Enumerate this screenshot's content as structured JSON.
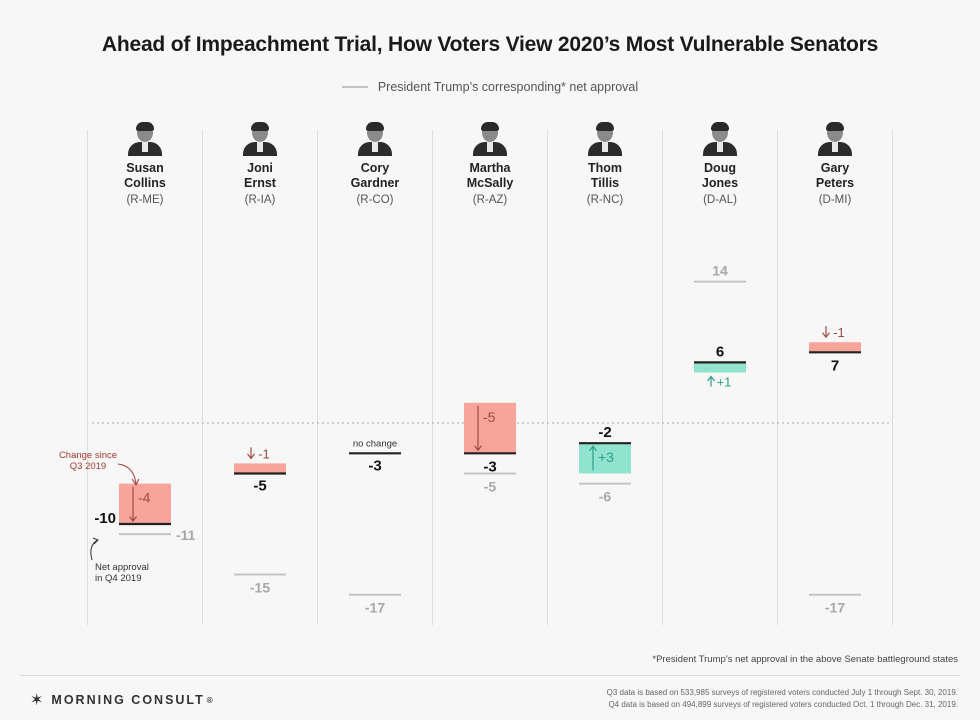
{
  "title": "Ahead of Impeachment Trial, How Voters View 2020’s Most Vulnerable Senators",
  "legend": {
    "label": "President Trump’s corresponding* net approval",
    "color": "#c4c4c4"
  },
  "annotations": {
    "change_label_line1": "Change since",
    "change_label_line2": "Q3 2019",
    "net_label_line1": "Net approval",
    "net_label_line2": "in Q4 2019",
    "no_change": "no change"
  },
  "footnote": "*President Trump’s net approval in the above Senate battleground states",
  "brand": {
    "mark": "✶",
    "name": "MORNING CONSULT",
    "suffix": "®"
  },
  "source": {
    "line1": "Q3 data is based on 533,985 surveys of registered voters conducted July 1 through Sept. 30, 2019.",
    "line2": "Q4 data is based on 494,899 surveys of registered voters conducted Oct. 1 through Dec. 31, 2019."
  },
  "colors": {
    "decrease": "#f7a59b",
    "increase": "#8fe3cf",
    "decrease_text": "#9e4a44",
    "increase_text": "#2f9e86",
    "annotation_red": "#a33b33",
    "trump_line": "#c4c4c4",
    "trump_text": "#a8a8a8",
    "net_line": "#222222"
  },
  "chart_data": {
    "type": "bar",
    "ylim": [
      -18,
      15
    ],
    "reference_line": 0,
    "categories": [
      "Susan Collins",
      "Joni Ernst",
      "Cory Gardner",
      "Martha McSally",
      "Thom Tillis",
      "Doug Jones",
      "Gary Peters"
    ],
    "senators": [
      {
        "first": "Susan",
        "last": "Collins",
        "party": "(R-ME)",
        "net_q4": -10,
        "net_label": "-10",
        "change": -4,
        "change_label": "-4",
        "trump": -11,
        "trump_label": "-11"
      },
      {
        "first": "Joni",
        "last": "Ernst",
        "party": "(R-IA)",
        "net_q4": -5,
        "net_label": "-5",
        "change": -1,
        "change_label": "-1",
        "trump": -15,
        "trump_label": "-15"
      },
      {
        "first": "Cory",
        "last": "Gardner",
        "party": "(R-CO)",
        "net_q4": -3,
        "net_label": "-3",
        "change": 0,
        "change_label": "",
        "trump": -17,
        "trump_label": "-17"
      },
      {
        "first": "Martha",
        "last": "McSally",
        "party": "(R-AZ)",
        "net_q4": -3,
        "net_label": "-3",
        "change": -5,
        "change_label": "-5",
        "trump": -5,
        "trump_label": "-5"
      },
      {
        "first": "Thom",
        "last": "Tillis",
        "party": "(R-NC)",
        "net_q4": -2,
        "net_label": "-2",
        "change": 3,
        "change_label": "+3",
        "trump": -6,
        "trump_label": "-6"
      },
      {
        "first": "Doug",
        "last": "Jones",
        "party": "(D-AL)",
        "net_q4": 6,
        "net_label": "6",
        "change": 1,
        "change_label": "+1",
        "trump": 14,
        "trump_label": "14"
      },
      {
        "first": "Gary",
        "last": "Peters",
        "party": "(D-MI)",
        "net_q4": 7,
        "net_label": "7",
        "change": -1,
        "change_label": "-1",
        "trump": -17,
        "trump_label": "-17"
      }
    ]
  }
}
